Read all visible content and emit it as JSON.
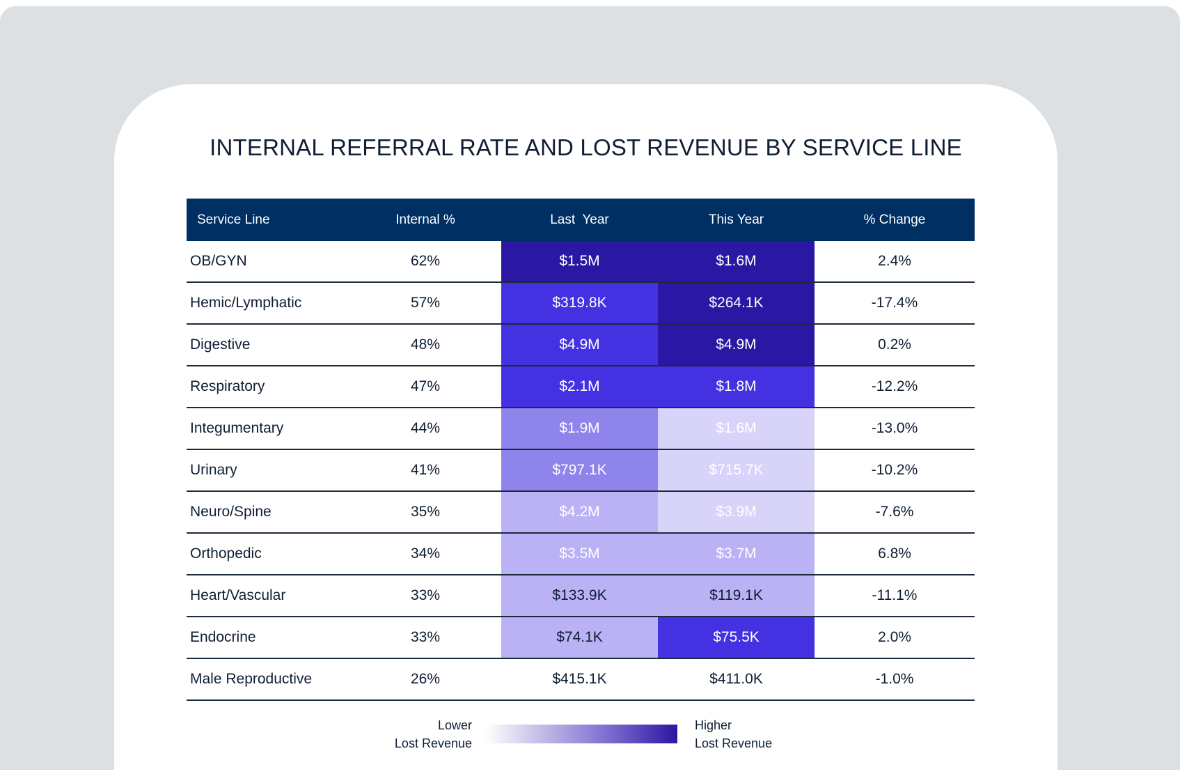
{
  "chart_data": {
    "type": "table",
    "title": "INTERNAL REFERRAL RATE AND LOST REVENUE BY SERVICE LINE",
    "columns": [
      "Service Line",
      "Internal %",
      "Last  Year",
      "This Year",
      "% Change"
    ],
    "rows": [
      {
        "service": "OB/GYN",
        "internal": "62%",
        "last": "$1.5M",
        "this": "$1.6M",
        "change": "2.4%",
        "last_level": "very-high",
        "this_level": "very-high"
      },
      {
        "service": "Hemic/Lymphatic",
        "internal": "57%",
        "last": "$319.8K",
        "this": "$264.1K",
        "change": "-17.4%",
        "last_level": "high",
        "this_level": "very-high"
      },
      {
        "service": "Digestive",
        "internal": "48%",
        "last": "$4.9M",
        "this": "$4.9M",
        "change": "0.2%",
        "last_level": "high",
        "this_level": "very-high"
      },
      {
        "service": "Respiratory",
        "internal": "47%",
        "last": "$2.1M",
        "this": "$1.8M",
        "change": "-12.2%",
        "last_level": "high",
        "this_level": "high"
      },
      {
        "service": "Integumentary",
        "internal": "44%",
        "last": "$1.9M",
        "this": "$1.6M",
        "change": "-13.0%",
        "last_level": "medium",
        "this_level": "very-low"
      },
      {
        "service": "Urinary",
        "internal": "41%",
        "last": "$797.1K",
        "this": "$715.7K",
        "change": "-10.2%",
        "last_level": "medium",
        "this_level": "very-low"
      },
      {
        "service": "Neuro/Spine",
        "internal": "35%",
        "last": "$4.2M",
        "this": "$3.9M",
        "change": "-7.6%",
        "last_level": "low",
        "this_level": "very-low"
      },
      {
        "service": "Orthopedic",
        "internal": "34%",
        "last": "$3.5M",
        "this": "$3.7M",
        "change": "6.8%",
        "last_level": "low",
        "this_level": "low"
      },
      {
        "service": "Heart/Vascular",
        "internal": "33%",
        "last": "$133.9K",
        "this": "$119.1K",
        "change": "-11.1%",
        "last_level": "low",
        "this_level": "low"
      },
      {
        "service": "Endocrine",
        "internal": "33%",
        "last": "$74.1K",
        "this": "$75.5K",
        "change": "2.0%",
        "last_level": "low",
        "this_level": "high"
      },
      {
        "service": "Male Reproductive",
        "internal": "26%",
        "last": "$415.1K",
        "this": "$411.0K",
        "change": "-1.0%",
        "last_level": "none",
        "this_level": "none"
      }
    ],
    "level_colors": {
      "very-high": "#2a17a3",
      "high": "#4331e2",
      "medium": "#8f83ec",
      "low": "#bab2f4",
      "very-low": "#d8d3f9",
      "none": "#ffffff"
    },
    "legend": {
      "low_label_1": "Lower",
      "low_label_2": "Lost Revenue",
      "high_label_1": "Higher",
      "high_label_2": "Lost Revenue"
    }
  },
  "colors": {
    "header": "#002f63",
    "background": "#dde0e3"
  }
}
